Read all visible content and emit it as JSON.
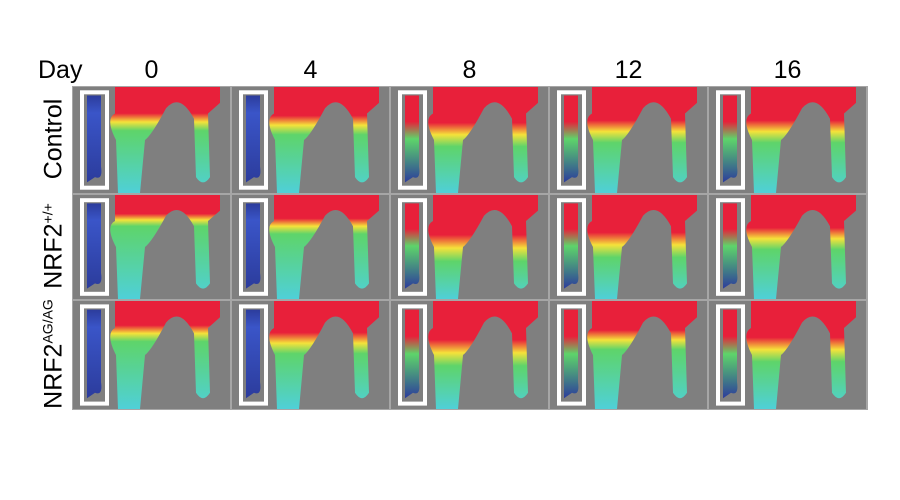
{
  "figure": {
    "day_label": "Day",
    "days": [
      "0",
      "4",
      "8",
      "12",
      "16"
    ],
    "rows": [
      {
        "label": "Control",
        "superscript": ""
      },
      {
        "label": "NRF2",
        "superscript": "+/+"
      },
      {
        "label": "NRF2",
        "superscript": "AG/AG"
      }
    ],
    "colors": {
      "background": "#7f7f7f",
      "high": "#e8203a",
      "mid": "#f5e23a",
      "low": "#5ed46a",
      "lowest": "#4fd0d8",
      "baseline": "#2c3c9c"
    },
    "red_extent": [
      [
        0.55,
        0.6,
        0.75,
        0.7,
        0.7
      ],
      [
        0.4,
        0.5,
        0.85,
        0.8,
        0.7
      ],
      [
        0.5,
        0.65,
        0.8,
        0.6,
        0.75
      ]
    ]
  }
}
